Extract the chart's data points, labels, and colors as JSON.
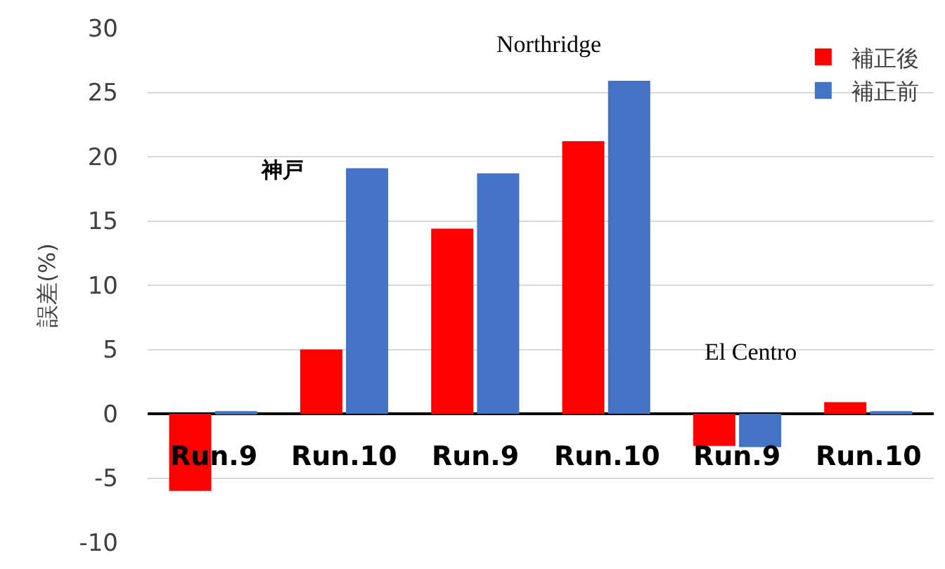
{
  "chart_data": {
    "type": "bar",
    "ylabel": "誤差(%)",
    "categories": [
      "Run.9",
      "Run.10",
      "Run.9",
      "Run.10",
      "Run.9",
      "Run.10"
    ],
    "series": [
      {
        "name": "補正後",
        "color": "#ff0000",
        "values": [
          -6.0,
          5.0,
          14.4,
          21.2,
          -2.5,
          0.9
        ]
      },
      {
        "name": "補正前",
        "color": "#4472c4",
        "values": [
          0.2,
          19.1,
          18.7,
          25.9,
          -2.6,
          0.2
        ]
      }
    ],
    "ylim": [
      -10,
      30
    ],
    "yticks": [
      -10,
      -5,
      0,
      5,
      10,
      15,
      20,
      25,
      30
    ],
    "grid": "y",
    "legend": "top right",
    "annotations": [
      "神戸",
      "Northridge",
      "El Centro"
    ]
  }
}
